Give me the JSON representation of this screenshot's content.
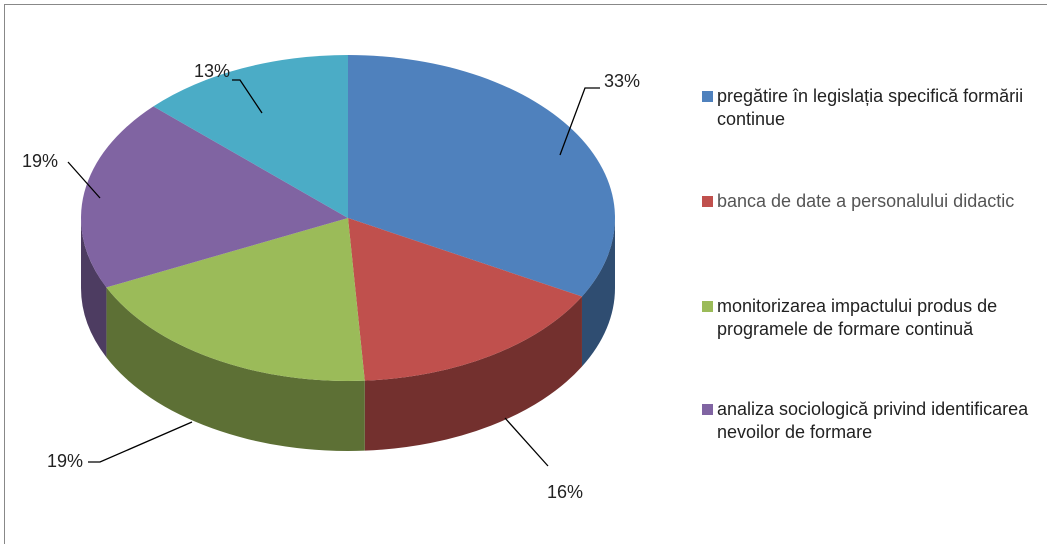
{
  "chart_data": {
    "type": "pie",
    "categories": [
      "pregătire în legislația specifică formării continue",
      "banca de date a personalului didactic",
      "monitorizarea impactului produs de programele de formare continuă",
      "analiza sociologică privind identificarea nevoilor de formare",
      null
    ],
    "values": [
      33,
      16,
      19,
      19,
      13
    ],
    "value_labels": [
      "33%",
      "16%",
      "19%",
      "19%",
      "13%"
    ],
    "colors": [
      "#4f81bd",
      "#c0504d",
      "#9bbb59",
      "#8064a2",
      "#4bacc6"
    ],
    "legend": "right"
  }
}
